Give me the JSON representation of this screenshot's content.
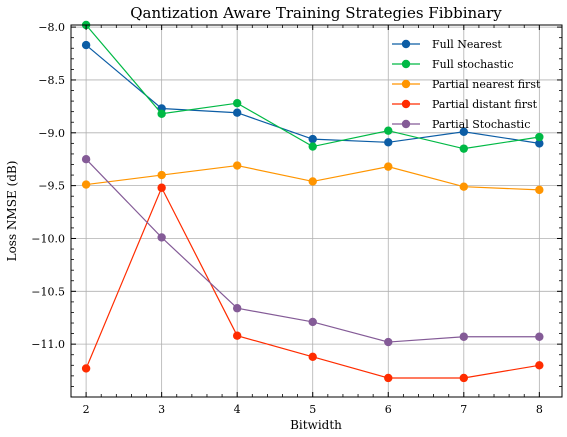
{
  "chart_data": {
    "type": "line",
    "title": "Qantization Aware Training Strategies Fibbinary",
    "xlabel": "Bitwidth",
    "ylabel": "Loss NMSE (dB)",
    "x": [
      2,
      3,
      4,
      5,
      6,
      7,
      8
    ],
    "xlim": [
      1.8,
      8.3
    ],
    "ylim": [
      -11.5,
      -7.98
    ],
    "xticks": [
      "2",
      "3",
      "4",
      "5",
      "6",
      "7",
      "8"
    ],
    "yticks": [
      -8.0,
      -8.5,
      -9.0,
      -9.5,
      -10.0,
      -10.5,
      -11.0
    ],
    "ytick_labels": [
      "−8.0",
      "−8.5",
      "−9.0",
      "−9.5",
      "−10.0",
      "−10.5",
      "−11.0"
    ],
    "grid": true,
    "legend_position": "top-right",
    "series": [
      {
        "name": "Full Nearest",
        "color": "#0C5DA5",
        "values": [
          -8.17,
          -8.77,
          -8.81,
          -9.06,
          -9.09,
          -8.99,
          -9.1
        ]
      },
      {
        "name": "Full stochastic",
        "color": "#00B945",
        "values": [
          -7.98,
          -8.82,
          -8.72,
          -9.13,
          -8.98,
          -9.15,
          -9.04
        ]
      },
      {
        "name": "Partial nearest first",
        "color": "#FF9500",
        "values": [
          -9.49,
          -9.4,
          -9.31,
          -9.46,
          -9.32,
          -9.51,
          -9.54
        ]
      },
      {
        "name": "Partial distant first",
        "color": "#FF2C00",
        "values": [
          -11.23,
          -9.52,
          -10.92,
          -11.12,
          -11.32,
          -11.32,
          -11.2
        ]
      },
      {
        "name": "Partial Stochastic",
        "color": "#845B97",
        "values": [
          -9.25,
          -9.99,
          -10.66,
          -10.79,
          -10.98,
          -10.93,
          -10.93
        ]
      }
    ]
  }
}
